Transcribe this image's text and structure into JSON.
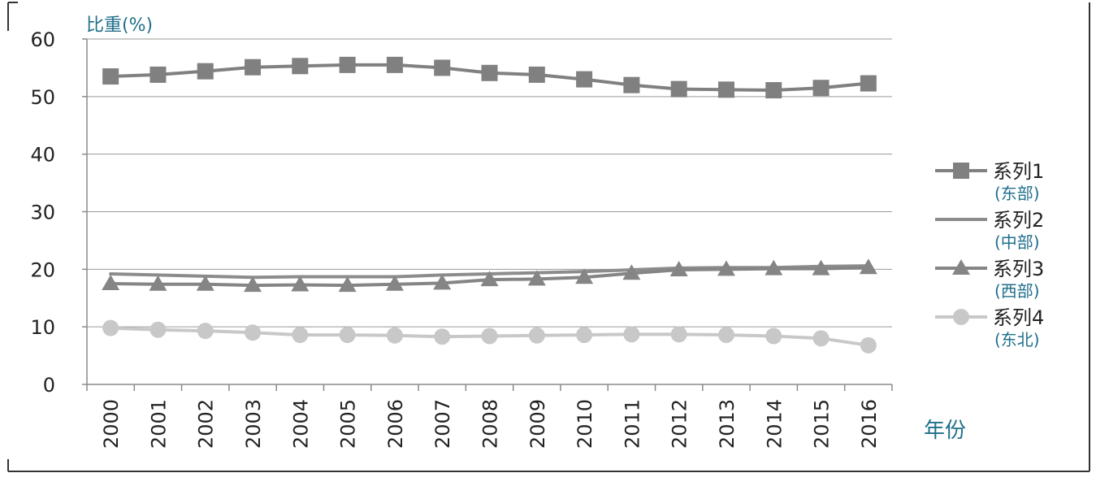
{
  "colors": {
    "accent_text": "#1f6f8b",
    "series_1": "#808080",
    "series_2": "#8c8c8c",
    "series_3": "#858585",
    "series_4": "#c8c8c8"
  },
  "chart_data": {
    "type": "line",
    "title": "",
    "ylabel": "比重(%)",
    "xlabel": "年份",
    "ylim": [
      0,
      60
    ],
    "yticks": [
      0,
      10,
      20,
      30,
      40,
      50,
      60
    ],
    "grid": true,
    "legend_position": "right",
    "categories": [
      "2000",
      "2001",
      "2002",
      "2003",
      "2004",
      "2005",
      "2006",
      "2007",
      "2008",
      "2009",
      "2010",
      "2011",
      "2012",
      "2013",
      "2014",
      "2015",
      "2016"
    ],
    "series": [
      {
        "name": "系列1",
        "region": "(东部)",
        "marker": "square",
        "values": [
          53.5,
          53.8,
          54.4,
          55.1,
          55.3,
          55.5,
          55.5,
          55.0,
          54.1,
          53.8,
          53.0,
          52.0,
          51.3,
          51.2,
          51.1,
          51.5,
          52.3
        ]
      },
      {
        "name": "系列2",
        "region": "(中部)",
        "marker": "none",
        "values": [
          19.2,
          19.0,
          18.8,
          18.6,
          18.7,
          18.7,
          18.7,
          19.0,
          19.2,
          19.4,
          19.6,
          19.9,
          20.2,
          20.3,
          20.3,
          20.5,
          20.6
        ]
      },
      {
        "name": "系列3",
        "region": "(西部)",
        "marker": "triangle",
        "values": [
          17.5,
          17.4,
          17.4,
          17.2,
          17.3,
          17.2,
          17.4,
          17.6,
          18.2,
          18.3,
          18.6,
          19.3,
          19.9,
          20.0,
          20.1,
          20.1,
          20.3
        ]
      },
      {
        "name": "系列4",
        "region": "(东北)",
        "marker": "circle",
        "values": [
          9.8,
          9.5,
          9.3,
          9.0,
          8.6,
          8.6,
          8.5,
          8.3,
          8.4,
          8.5,
          8.6,
          8.7,
          8.7,
          8.6,
          8.4,
          8.0,
          6.8
        ]
      }
    ]
  }
}
